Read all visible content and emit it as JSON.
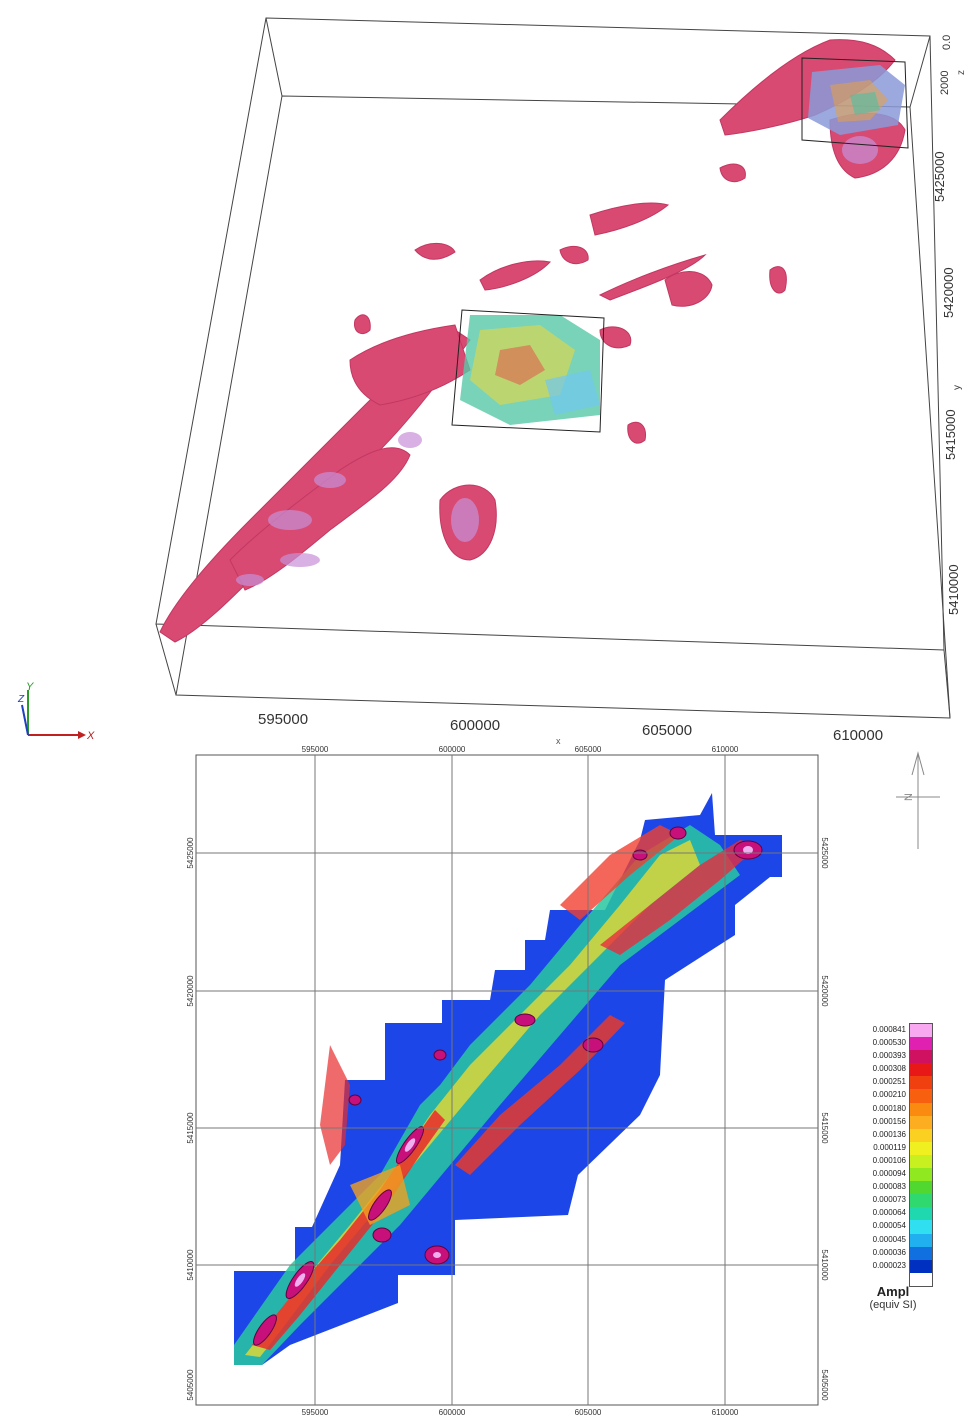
{
  "view3d": {
    "x_ticks": [
      "595000",
      "600000",
      "605000",
      "610000"
    ],
    "y_ticks": [
      "5410000",
      "5415000",
      "5420000",
      "5425000"
    ],
    "z_ticks": [
      "0.0",
      "2000"
    ],
    "y_axis_label": "y",
    "z_axis_label": "z",
    "x_axis_label": "x",
    "triad_x": "X",
    "triad_y": "Y",
    "triad_z": "Z"
  },
  "map2d": {
    "x_ticks": [
      "595000",
      "600000",
      "605000",
      "610000"
    ],
    "y_ticks": [
      "5425000",
      "5420000",
      "5415000",
      "5410000",
      "5405000"
    ],
    "north_label": "N"
  },
  "legend": {
    "values": [
      "0.000841",
      "0.000530",
      "0.000393",
      "0.000308",
      "0.000251",
      "0.000210",
      "0.000180",
      "0.000156",
      "0.000136",
      "0.000119",
      "0.000106",
      "0.000094",
      "0.000083",
      "0.000073",
      "0.000064",
      "0.000054",
      "0.000045",
      "0.000036",
      "0.000023"
    ],
    "colors": [
      "#f7a8f0",
      "#e020b0",
      "#d01060",
      "#e81818",
      "#f04010",
      "#f86010",
      "#fa8a10",
      "#fcae20",
      "#fcd020",
      "#f0f020",
      "#c8f020",
      "#90e820",
      "#50d830",
      "#30d870",
      "#20d8b0",
      "#30e0f0",
      "#20b0f0",
      "#1070e0",
      "#0030c0"
    ],
    "title": "Ampl",
    "unit": "(equiv SI)"
  }
}
